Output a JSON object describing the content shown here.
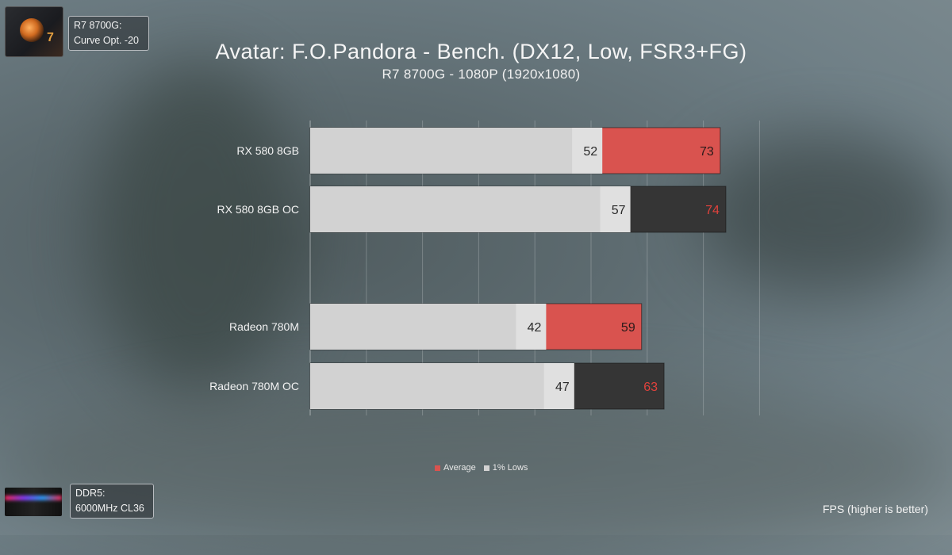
{
  "overlay": {
    "cpu_label_line1": "R7 8700G:",
    "cpu_label_line2": "Curve Opt. -20",
    "ram_label_line1": "DDR5:",
    "ram_label_line2": "6000MHz CL36",
    "footnote": "FPS (higher is better)"
  },
  "colors": {
    "average_red": "#d9534f",
    "average_dark": "#353535",
    "lows_gray": "#d2d2d2",
    "value_on_dark": "#e0423c"
  },
  "chart_data": {
    "type": "bar",
    "orientation": "horizontal",
    "title": "Avatar: F.O.Pandora - Bench. (DX12, Low, FSR3+FG)",
    "subtitle": "R7 8700G - 1080P (1920x1080)",
    "xlim": [
      0,
      80
    ],
    "grid": true,
    "legend_position": "bottom",
    "categories": [
      "RX 580 8GB",
      "RX 580 8GB OC",
      "Radeon 780M",
      "Radeon 780M OC"
    ],
    "gap_after_index": 1,
    "series": [
      {
        "name": "Average",
        "values": [
          73,
          74,
          59,
          63
        ],
        "style": [
          "red",
          "dark",
          "red",
          "dark"
        ]
      },
      {
        "name": "1% Lows",
        "values": [
          52,
          57,
          42,
          47
        ]
      }
    ]
  }
}
